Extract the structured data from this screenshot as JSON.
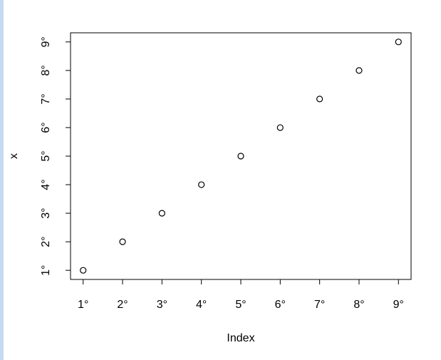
{
  "chart_data": {
    "type": "scatter",
    "x_label": "Index",
    "y_label": "x",
    "x": [
      1,
      2,
      3,
      4,
      5,
      6,
      7,
      8,
      9
    ],
    "series": [
      {
        "name": "x",
        "color": "#000000",
        "values": [
          1,
          2,
          3,
          4,
          5,
          6,
          7,
          8,
          9
        ]
      }
    ],
    "xlim": [
      0.68,
      9.32
    ],
    "ylim": [
      0.68,
      9.32
    ],
    "xticks": [
      {
        "value": 1,
        "label": "1°"
      },
      {
        "value": 2,
        "label": "2°"
      },
      {
        "value": 3,
        "label": "3°"
      },
      {
        "value": 4,
        "label": "4°"
      },
      {
        "value": 5,
        "label": "5°"
      },
      {
        "value": 6,
        "label": "6°"
      },
      {
        "value": 7,
        "label": "7°"
      },
      {
        "value": 8,
        "label": "8°"
      },
      {
        "value": 9,
        "label": "9°"
      }
    ],
    "yticks": [
      {
        "value": 1,
        "label": "1°"
      },
      {
        "value": 2,
        "label": "2°"
      },
      {
        "value": 3,
        "label": "3°"
      },
      {
        "value": 4,
        "label": "4°"
      },
      {
        "value": 5,
        "label": "5°"
      },
      {
        "value": 6,
        "label": "6°"
      },
      {
        "value": 7,
        "label": "7°"
      },
      {
        "value": 8,
        "label": "8°"
      },
      {
        "value": 9,
        "label": "9°"
      }
    ]
  }
}
